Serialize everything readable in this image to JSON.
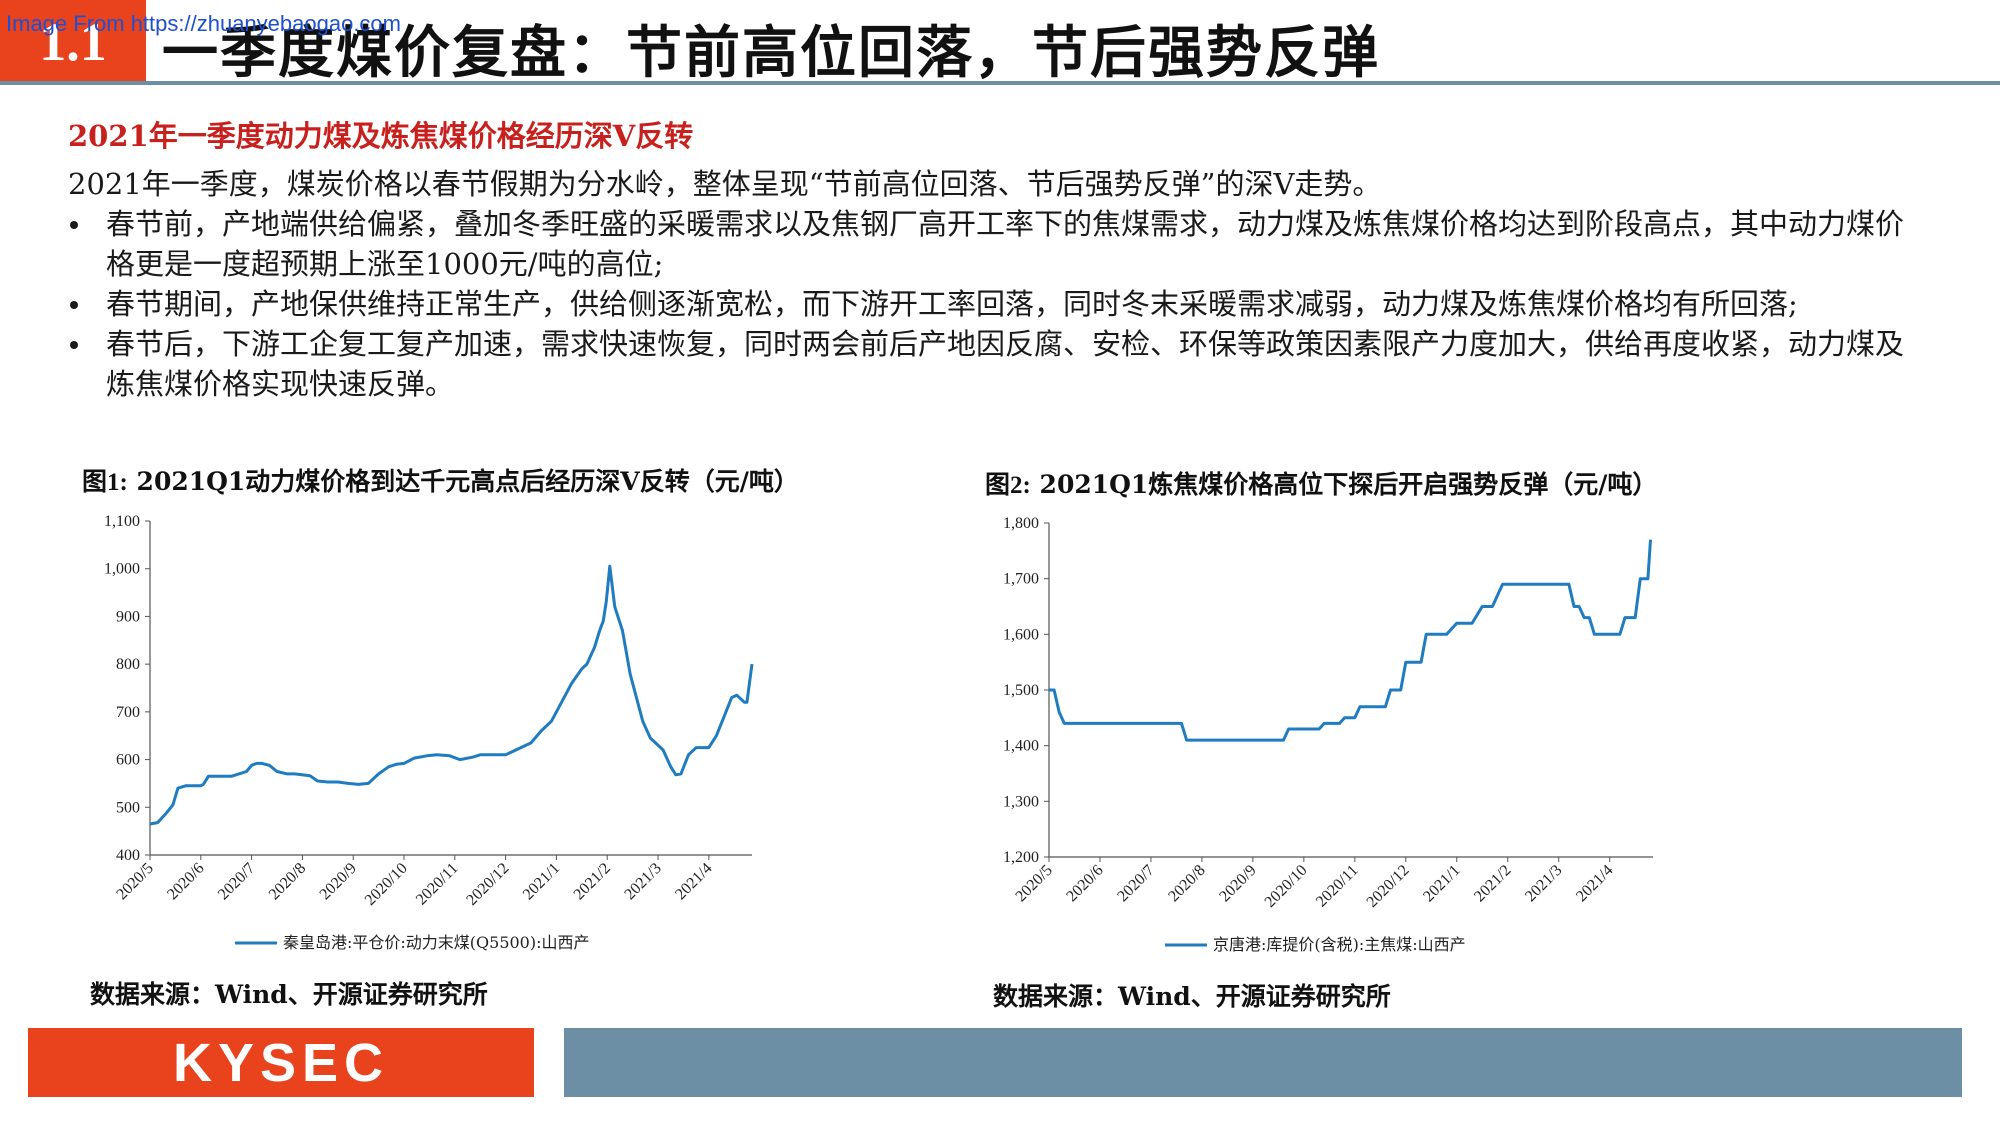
{
  "watermark": "Image From https://zhuanyebaogao.com",
  "header": {
    "section_number": "1.1",
    "title": "一季度煤价复盘：节前高位回落，节后强势反弹"
  },
  "section_heading": "2021年一季度动力煤及炼焦煤价格经历深V反转",
  "intro": "2021年一季度，煤炭价格以春节假期为分水岭，整体呈现“节前高位回落、节后强势反弹”的深V走势。",
  "bullets": [
    "春节前，产地端供给偏紧，叠加冬季旺盛的采暖需求以及焦钢厂高开工率下的焦煤需求，动力煤及炼焦煤价格均达到阶段高点，其中动力煤价格更是一度超预期上涨至1000元/吨的高位;",
    "春节期间，产地保供维持正常生产，供给侧逐渐宽松，而下游开工率回落，同时冬末采暖需求减弱，动力煤及炼焦煤价格均有所回落;",
    "春节后，下游工企复工复产加速，需求快速恢复，同时两会前后产地因反腐、安检、环保等政策因素限产力度加大，供给再度收紧，动力煤及炼焦煤价格实现快速反弹。"
  ],
  "figures": [
    {
      "number": "图1:",
      "title": "2021Q1动力煤价格到达千元高点后经历深V反转（元/吨）",
      "source": "数据来源：Wind、开源证券研究所"
    },
    {
      "number": "图2:",
      "title": "2021Q1炼焦煤价格高位下探后开启强势反弹（元/吨）",
      "source": "数据来源：Wind、开源证券研究所"
    }
  ],
  "footer": {
    "logo_text": "KYSEC"
  },
  "colors": {
    "accent": "#e8431c",
    "heading_red": "#c8201c",
    "rule_blue": "#6c8fa5",
    "line_blue": "#1f7cc0"
  },
  "chart_data": [
    {
      "type": "line",
      "ylim": [
        400,
        1100
      ],
      "yticks": [
        400,
        500,
        600,
        700,
        800,
        900,
        1000,
        1100
      ],
      "ytick_labels": [
        "400",
        "500",
        "600",
        "700",
        "800",
        "900",
        "1,000",
        "1,100"
      ],
      "xtick_labels": [
        "2020/5",
        "2020/6",
        "2020/7",
        "2020/8",
        "2020/9",
        "2020/10",
        "2020/11",
        "2020/12",
        "2021/1",
        "2021/2",
        "2021/3",
        "2021/4"
      ],
      "x_range": [
        0,
        11.85
      ],
      "series": [
        {
          "name": "秦皇岛港:平仓价:动力末煤(Q5500):山西产",
          "x": [
            0.0,
            0.15,
            0.3,
            0.45,
            0.55,
            0.7,
            1.0,
            1.05,
            1.15,
            1.3,
            1.6,
            1.9,
            2.0,
            2.1,
            2.2,
            2.35,
            2.5,
            2.7,
            2.85,
            3.15,
            3.3,
            3.5,
            3.7,
            3.9,
            4.1,
            4.3,
            4.5,
            4.7,
            4.85,
            5.0,
            5.2,
            5.45,
            5.65,
            5.9,
            6.1,
            6.35,
            6.5,
            6.8,
            7.0,
            7.3,
            7.5,
            7.7,
            7.9,
            8.0,
            8.2,
            8.3,
            8.5,
            8.6,
            8.75,
            8.85,
            8.92,
            8.98,
            9.05,
            9.15,
            9.3,
            9.45,
            9.5,
            9.7,
            9.85,
            9.95,
            10.1,
            10.25,
            10.35,
            10.45,
            10.6,
            10.75,
            10.85,
            11.0,
            11.15,
            11.3,
            11.45,
            11.55,
            11.7,
            11.75,
            11.85
          ],
          "values": [
            465,
            468,
            485,
            505,
            540,
            545,
            545,
            548,
            565,
            565,
            565,
            575,
            588,
            592,
            592,
            588,
            575,
            570,
            570,
            566,
            555,
            553,
            553,
            550,
            548,
            550,
            570,
            585,
            590,
            592,
            603,
            608,
            610,
            608,
            600,
            605,
            610,
            610,
            610,
            625,
            635,
            660,
            680,
            700,
            740,
            760,
            790,
            800,
            835,
            870,
            890,
            930,
            1005,
            920,
            870,
            780,
            760,
            680,
            645,
            635,
            620,
            585,
            568,
            570,
            610,
            625,
            625,
            625,
            650,
            690,
            730,
            735,
            720,
            720,
            800
          ]
        }
      ]
    },
    {
      "type": "line",
      "ylim": [
        1200,
        1800
      ],
      "yticks": [
        1200,
        1300,
        1400,
        1500,
        1600,
        1700,
        1800
      ],
      "ytick_labels": [
        "1,200",
        "1,300",
        "1,400",
        "1,500",
        "1,600",
        "1,700",
        "1,800"
      ],
      "xtick_labels": [
        "2020/5",
        "2020/6",
        "2020/7",
        "2020/8",
        "2020/9",
        "2020/10",
        "2020/11",
        "2020/12",
        "2021/1",
        "2021/2",
        "2021/3",
        "2021/4"
      ],
      "x_range": [
        0,
        11.85
      ],
      "series": [
        {
          "name": "京唐港:库提价(含税):主焦煤:山西产",
          "x": [
            0.0,
            0.1,
            0.2,
            0.3,
            1.0,
            2.0,
            2.6,
            2.7,
            3.0,
            4.0,
            4.6,
            4.7,
            5.3,
            5.4,
            5.7,
            5.8,
            6.0,
            6.1,
            6.6,
            6.7,
            6.9,
            7.0,
            7.3,
            7.4,
            7.8,
            8.0,
            8.3,
            8.5,
            8.7,
            8.9,
            9.0,
            9.5,
            10.0,
            10.2,
            10.3,
            10.4,
            10.5,
            10.6,
            10.7,
            11.2,
            11.3,
            11.5,
            11.6,
            11.75,
            11.8
          ],
          "values": [
            1500,
            1500,
            1460,
            1440,
            1440,
            1440,
            1440,
            1410,
            1410,
            1410,
            1410,
            1430,
            1430,
            1440,
            1440,
            1450,
            1450,
            1470,
            1470,
            1500,
            1500,
            1550,
            1550,
            1600,
            1600,
            1620,
            1620,
            1650,
            1650,
            1690,
            1690,
            1690,
            1690,
            1690,
            1650,
            1650,
            1630,
            1630,
            1600,
            1600,
            1630,
            1630,
            1700,
            1700,
            1770
          ]
        }
      ]
    }
  ]
}
